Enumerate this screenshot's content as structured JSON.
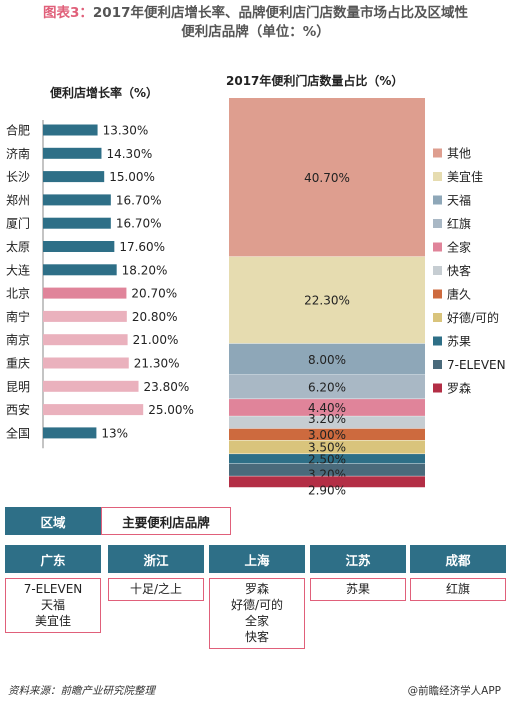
{
  "title": {
    "prefix": "图表3：",
    "line1": "2017年便利店增长率、品牌便利店门店数量市场占比及区域性",
    "line2": "便利店品牌（单位：%）"
  },
  "colors": {
    "teal": "#2e6f87",
    "pink": "#e0849a",
    "lightpink": "#eab1bd",
    "accent": "#e0607a"
  },
  "chart_data": [
    {
      "type": "bar",
      "title": "便利店增长率（%）",
      "categories": [
        "合肥",
        "济南",
        "长沙",
        "郑州",
        "厦门",
        "太原",
        "大连",
        "北京",
        "南宁",
        "南京",
        "重庆",
        "昆明",
        "西安",
        "全国"
      ],
      "values": [
        13.3,
        14.3,
        15.0,
        16.7,
        16.7,
        17.6,
        18.2,
        20.7,
        20.8,
        21.0,
        21.3,
        23.8,
        25.0,
        13
      ],
      "value_labels": [
        "13.30%",
        "14.30%",
        "15.00%",
        "16.70%",
        "16.70%",
        "17.60%",
        "18.20%",
        "20.70%",
        "20.80%",
        "21.00%",
        "21.30%",
        "23.80%",
        "25.00%",
        "13%"
      ],
      "bar_colors": [
        "#2e6f87",
        "#2e6f87",
        "#2e6f87",
        "#2e6f87",
        "#2e6f87",
        "#2e6f87",
        "#2e6f87",
        "#e0849a",
        "#eab1bd",
        "#eab1bd",
        "#eab1bd",
        "#eab1bd",
        "#eab1bd",
        "#2e6f87"
      ],
      "orientation": "horizontal",
      "xlim": [
        0,
        25
      ]
    },
    {
      "type": "bar",
      "stacked": true,
      "title": "2017年便利门店数量占比（%）",
      "series": [
        {
          "name": "其他",
          "value": 40.7,
          "label": "40.70%",
          "color": "#de9e8f"
        },
        {
          "name": "美宜佳",
          "value": 22.3,
          "label": "22.30%",
          "color": "#e6dcb0"
        },
        {
          "name": "天福",
          "value": 8.0,
          "label": "8.00%",
          "color": "#8ea7b8"
        },
        {
          "name": "红旗",
          "value": 6.2,
          "label": "6.20%",
          "color": "#a9b8c5"
        },
        {
          "name": "全家",
          "value": 4.4,
          "label": "4.40%",
          "color": "#e0849a"
        },
        {
          "name": "快客",
          "value": 3.2,
          "label": "3.20%",
          "color": "#c6cdd2"
        },
        {
          "name": "唐久",
          "value": 3.0,
          "label": "3.00%",
          "color": "#cd6a3e"
        },
        {
          "name": "好德/可的",
          "value": 3.5,
          "label": "3.50%",
          "color": "#d9c47c"
        },
        {
          "name": "苏果",
          "value": 2.5,
          "label": "2.50%",
          "color": "#2e6f87"
        },
        {
          "name": "7-ELEVEN",
          "value": 3.2,
          "label": "3.20%",
          "color": "#4a6a7b"
        },
        {
          "name": "罗森",
          "value": 2.9,
          "label": "2.90%",
          "color": "#b32e45"
        }
      ],
      "legend_placement": "right"
    }
  ],
  "region_table": {
    "header_region": "区域",
    "header_brand": "主要便利店品牌",
    "regions": [
      {
        "name": "广东",
        "brands": [
          "7-ELEVEN",
          "天福",
          "美宜佳"
        ]
      },
      {
        "name": "浙江",
        "brands": [
          "十足/之上"
        ]
      },
      {
        "name": "上海",
        "brands": [
          "罗森",
          "好德/可的",
          "全家",
          "快客"
        ]
      },
      {
        "name": "江苏",
        "brands": [
          "苏果"
        ]
      },
      {
        "name": "成都",
        "brands": [
          "红旗"
        ]
      }
    ]
  },
  "footer": {
    "source": "资料来源：前瞻产业研究院整理",
    "credit": "@前瞻经济学人APP"
  }
}
